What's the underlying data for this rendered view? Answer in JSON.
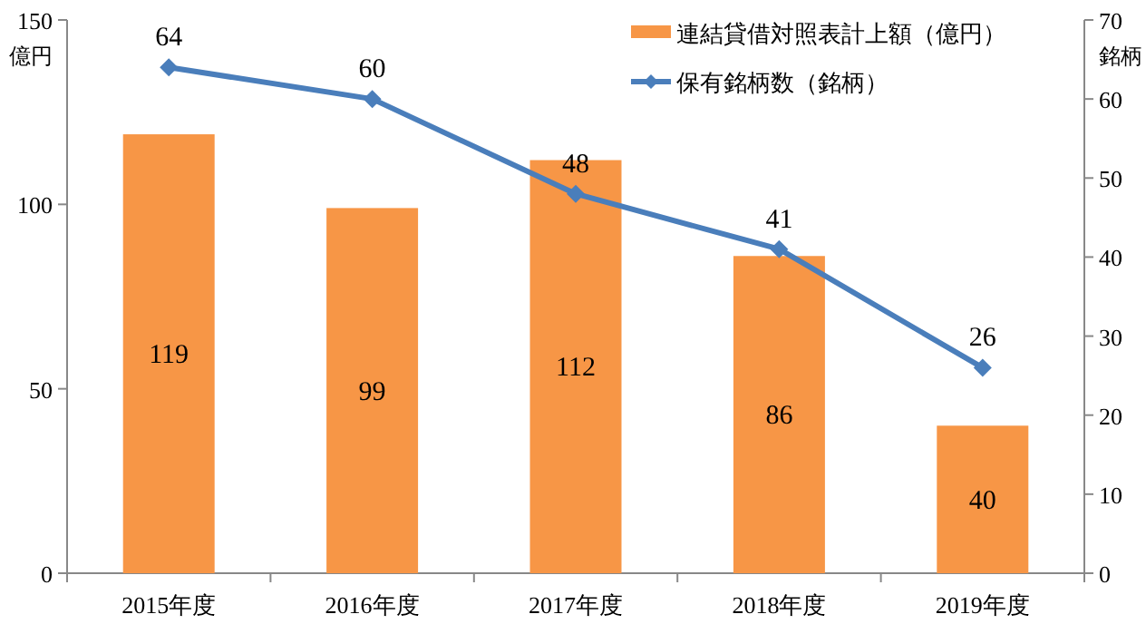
{
  "chart_data": {
    "type": "bar",
    "categories": [
      "2015年度",
      "2016年度",
      "2017年度",
      "2018年度",
      "2019年度"
    ],
    "series": [
      {
        "name": "連結貸借対照表計上額（億円）",
        "color": "#f79646",
        "values": [
          119,
          99,
          112,
          86,
          40
        ]
      },
      {
        "name": "保有銘柄数（銘柄）",
        "type": "line",
        "axis": "y2",
        "color": "#4a7ebb",
        "marker": "diamond",
        "values": [
          64,
          60,
          48,
          41,
          26
        ]
      }
    ],
    "ylabel": "億円",
    "y2label": "銘柄",
    "ylim": [
      0,
      150
    ],
    "yticks": [
      0,
      50,
      100,
      150
    ],
    "y2lim": [
      0,
      70
    ],
    "y2ticks": [
      0,
      10,
      20,
      30,
      40,
      50,
      60,
      70
    ],
    "data_labels": true,
    "legend": "top right",
    "grid": false
  }
}
